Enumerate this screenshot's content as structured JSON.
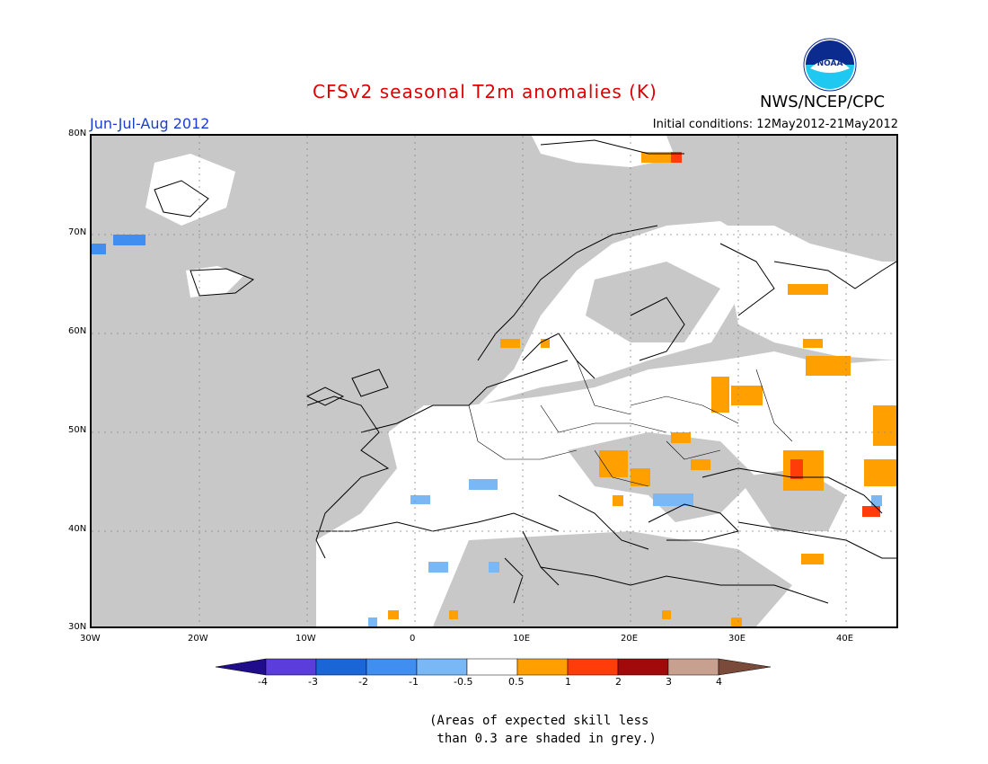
{
  "header": {
    "title": "CFSv2 seasonal T2m anomalies (K)",
    "agency": "NWS/NCEP/CPC",
    "logo_text": "NOAA",
    "period": "Jun-Jul-Aug 2012",
    "initial_conditions": "Initial conditions: 12May2012-21May2012"
  },
  "map": {
    "region": "Europe",
    "lon_range": [
      -30,
      45
    ],
    "lat_range": [
      30,
      80
    ],
    "lat_labels": [
      "30N",
      "40N",
      "50N",
      "60N",
      "70N",
      "80N"
    ],
    "lon_labels": [
      "30W",
      "20W",
      "10W",
      "0",
      "10E",
      "20E",
      "30E",
      "40E"
    ],
    "colors": {
      "skill_grey": "#c8c8c8",
      "neutral": "#ffffff",
      "land_outline": "#000000"
    }
  },
  "colorbar": {
    "boundaries": [
      "-4",
      "-3",
      "-2",
      "-1",
      "-0.5",
      "0.5",
      "1",
      "2",
      "3",
      "4"
    ],
    "colors": [
      "#1f0d8c",
      "#5b3ddb",
      "#1b66d6",
      "#3f8ef0",
      "#79b7f5",
      "#ffffff",
      "#ffa000",
      "#ff3c0a",
      "#a00a0a",
      "#c8a090",
      "#7a4a3a"
    ]
  },
  "note": "(Areas of expected skill less\n than 0.3 are shaded in grey.)"
}
